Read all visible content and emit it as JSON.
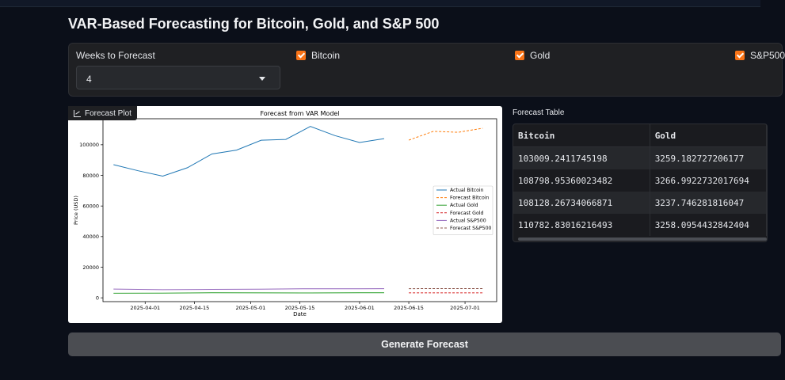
{
  "page": {
    "title": "VAR-Based Forecasting for Bitcoin, Gold, and S&P 500"
  },
  "controls": {
    "weeks_label": "Weeks to Forecast",
    "weeks_value": "4",
    "checkboxes": [
      {
        "label": "Bitcoin",
        "checked": true
      },
      {
        "label": "Gold",
        "checked": true
      },
      {
        "label": "S&P500",
        "checked": true
      }
    ]
  },
  "plot": {
    "tab_label": "Forecast Plot"
  },
  "chart_data": {
    "type": "line",
    "title": "Forecast from VAR Model",
    "xlabel": "Date",
    "ylabel": "Price (USD)",
    "ylim": [
      -2500,
      117000
    ],
    "xlim": [
      "2025-03-20",
      "2025-07-10"
    ],
    "x_ticks": [
      "2025-04-01",
      "2025-04-15",
      "2025-05-01",
      "2025-05-15",
      "2025-06-01",
      "2025-06-15",
      "2025-07-01"
    ],
    "y_ticks": [
      0,
      20000,
      40000,
      60000,
      80000,
      100000
    ],
    "legend_position": "center-right",
    "series": [
      {
        "name": "Actual Bitcoin",
        "style": "solid",
        "color": "#1f77b4",
        "points": [
          [
            "2025-03-23",
            87000
          ],
          [
            "2025-03-30",
            83000
          ],
          [
            "2025-04-06",
            79500
          ],
          [
            "2025-04-13",
            85000
          ],
          [
            "2025-04-20",
            94000
          ],
          [
            "2025-04-27",
            96500
          ],
          [
            "2025-05-04",
            103000
          ],
          [
            "2025-05-11",
            103500
          ],
          [
            "2025-05-18",
            112000
          ],
          [
            "2025-05-25",
            106000
          ],
          [
            "2025-06-01",
            101500
          ],
          [
            "2025-06-08",
            104000
          ]
        ]
      },
      {
        "name": "Forecast Bitcoin",
        "style": "dashed",
        "color": "#ff7f0e",
        "points": [
          [
            "2025-06-15",
            103009.24
          ],
          [
            "2025-06-22",
            108798.95
          ],
          [
            "2025-06-29",
            108128.27
          ],
          [
            "2025-07-06",
            110782.83
          ]
        ]
      },
      {
        "name": "Actual Gold",
        "style": "solid",
        "color": "#2ca02c",
        "points": [
          [
            "2025-03-23",
            3000
          ],
          [
            "2025-04-06",
            3050
          ],
          [
            "2025-04-20",
            3300
          ],
          [
            "2025-05-04",
            3250
          ],
          [
            "2025-05-18",
            3200
          ],
          [
            "2025-06-01",
            3300
          ],
          [
            "2025-06-08",
            3320
          ]
        ]
      },
      {
        "name": "Forecast Gold",
        "style": "dashed",
        "color": "#d62728",
        "points": [
          [
            "2025-06-15",
            3259.18
          ],
          [
            "2025-06-22",
            3266.99
          ],
          [
            "2025-06-29",
            3237.75
          ],
          [
            "2025-07-06",
            3258.1
          ]
        ]
      },
      {
        "name": "Actual S&P500",
        "style": "solid",
        "color": "#9467bd",
        "points": [
          [
            "2025-03-23",
            5700
          ],
          [
            "2025-04-06",
            5300
          ],
          [
            "2025-04-20",
            5500
          ],
          [
            "2025-05-04",
            5650
          ],
          [
            "2025-05-18",
            5950
          ],
          [
            "2025-06-01",
            5900
          ],
          [
            "2025-06-08",
            6000
          ]
        ]
      },
      {
        "name": "Forecast S&P500",
        "style": "dashed",
        "color": "#8c564b",
        "points": [
          [
            "2025-06-15",
            6000
          ],
          [
            "2025-06-22",
            6020
          ],
          [
            "2025-06-29",
            6010
          ],
          [
            "2025-07-06",
            6030
          ]
        ]
      }
    ]
  },
  "table": {
    "title": "Forecast Table",
    "headers": [
      "Bitcoin",
      "Gold"
    ],
    "rows": [
      [
        "103009.2411745198",
        "3259.182727206177"
      ],
      [
        "108798.95360023482",
        "3266.9922732017694"
      ],
      [
        "108128.26734066871",
        "3237.746281816047"
      ],
      [
        "110782.83016216493",
        "3258.0954432842404"
      ]
    ]
  },
  "actions": {
    "generate_label": "Generate Forecast"
  }
}
